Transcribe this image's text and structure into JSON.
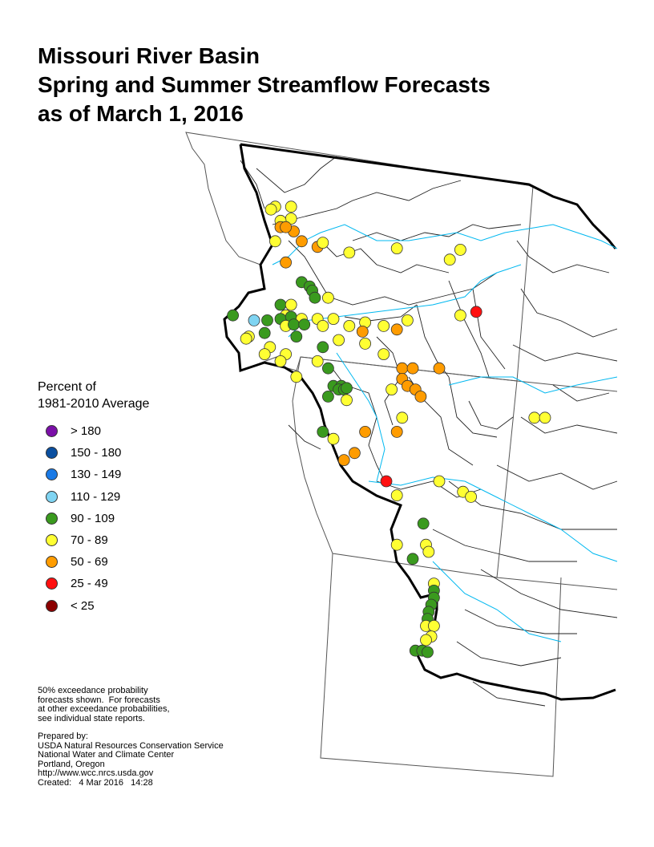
{
  "title": {
    "line1": "Missouri River Basin",
    "line2": "Spring and Summer Streamflow Forecasts",
    "line3": "as of March 1, 2016"
  },
  "legend": {
    "title_line1": "Percent of",
    "title_line2": "1981-2010 Average",
    "items": [
      {
        "label": "> 180",
        "color": "#7b0fa8"
      },
      {
        "label": "150 - 180",
        "color": "#0a4fa0"
      },
      {
        "label": "130 - 149",
        "color": "#1a7ae6"
      },
      {
        "label": "110 - 129",
        "color": "#7fd4f2"
      },
      {
        "label": "90 - 109",
        "color": "#3a9a1e"
      },
      {
        "label": "70 - 89",
        "color": "#ffff33"
      },
      {
        "label": "50 - 69",
        "color": "#ff9c00"
      },
      {
        "label": "25 - 49",
        "color": "#ff1010"
      },
      {
        "label": "< 25",
        "color": "#8b0000"
      }
    ]
  },
  "notes": {
    "exceedance": [
      "50% exceedance probability",
      "forecasts shown.  For forecasts",
      "at other exceedance probabilities,",
      "see individual state reports."
    ],
    "prepared": [
      "Prepared by:",
      "USDA Natural Resources Conservation Service",
      "National Water and Climate Center",
      "Portland, Oregon",
      "http://www.wcc.nrcs.usda.gov",
      "Created:   4 Mar 2016   14:28"
    ]
  },
  "map_points": [
    {
      "lon": -113.7,
      "lat": 48.99,
      "cat": "70 - 89"
    },
    {
      "lon": -113.78,
      "lat": 48.95,
      "cat": "70 - 89"
    },
    {
      "lon": -113.4,
      "lat": 48.99,
      "cat": "70 - 89"
    },
    {
      "lon": -113.4,
      "lat": 48.82,
      "cat": "70 - 89"
    },
    {
      "lon": -113.6,
      "lat": 48.79,
      "cat": "70 - 89"
    },
    {
      "lon": -113.35,
      "lat": 48.64,
      "cat": "50 - 69"
    },
    {
      "lon": -113.6,
      "lat": 48.7,
      "cat": "50 - 69"
    },
    {
      "lon": -113.5,
      "lat": 48.7,
      "cat": "50 - 69"
    },
    {
      "lon": -113.7,
      "lat": 48.5,
      "cat": "70 - 89"
    },
    {
      "lon": -113.2,
      "lat": 48.5,
      "cat": "50 - 69"
    },
    {
      "lon": -112.9,
      "lat": 48.42,
      "cat": "50 - 69"
    },
    {
      "lon": -112.8,
      "lat": 48.48,
      "cat": "70 - 89"
    },
    {
      "lon": -112.3,
      "lat": 48.34,
      "cat": "70 - 89"
    },
    {
      "lon": -111.4,
      "lat": 48.4,
      "cat": "70 - 89"
    },
    {
      "lon": -110.2,
      "lat": 48.38,
      "cat": "70 - 89"
    },
    {
      "lon": -110.4,
      "lat": 48.24,
      "cat": "70 - 89"
    },
    {
      "lon": -113.5,
      "lat": 48.2,
      "cat": "50 - 69"
    },
    {
      "lon": -113.2,
      "lat": 47.92,
      "cat": "90 - 109"
    },
    {
      "lon": -113.05,
      "lat": 47.86,
      "cat": "90 - 109"
    },
    {
      "lon": -113.0,
      "lat": 47.8,
      "cat": "90 - 109"
    },
    {
      "lon": -112.95,
      "lat": 47.7,
      "cat": "90 - 109"
    },
    {
      "lon": -112.7,
      "lat": 47.7,
      "cat": "70 - 89"
    },
    {
      "lon": -113.6,
      "lat": 47.6,
      "cat": "90 - 109"
    },
    {
      "lon": -113.4,
      "lat": 47.6,
      "cat": "70 - 89"
    },
    {
      "lon": -113.5,
      "lat": 47.45,
      "cat": "70 - 89"
    },
    {
      "lon": -113.6,
      "lat": 47.4,
      "cat": "90 - 109"
    },
    {
      "lon": -113.4,
      "lat": 47.43,
      "cat": "90 - 109"
    },
    {
      "lon": -114.5,
      "lat": 47.45,
      "cat": "90 - 109"
    },
    {
      "lon": -114.1,
      "lat": 47.38,
      "cat": "110 - 129"
    },
    {
      "lon": -113.85,
      "lat": 47.38,
      "cat": "90 - 109"
    },
    {
      "lon": -113.2,
      "lat": 47.4,
      "cat": "70 - 89"
    },
    {
      "lon": -112.9,
      "lat": 47.4,
      "cat": "70 - 89"
    },
    {
      "lon": -112.6,
      "lat": 47.4,
      "cat": "70 - 89"
    },
    {
      "lon": -112.0,
      "lat": 47.35,
      "cat": "70 - 89"
    },
    {
      "lon": -111.2,
      "lat": 47.38,
      "cat": "70 - 89"
    },
    {
      "lon": -110.2,
      "lat": 47.45,
      "cat": "70 - 89"
    },
    {
      "lon": -109.9,
      "lat": 47.5,
      "cat": "25 - 49"
    },
    {
      "lon": -113.5,
      "lat": 47.3,
      "cat": "70 - 89"
    },
    {
      "lon": -113.35,
      "lat": 47.32,
      "cat": "90 - 109"
    },
    {
      "lon": -113.15,
      "lat": 47.32,
      "cat": "90 - 109"
    },
    {
      "lon": -112.8,
      "lat": 47.3,
      "cat": "70 - 89"
    },
    {
      "lon": -112.3,
      "lat": 47.3,
      "cat": "70 - 89"
    },
    {
      "lon": -112.05,
      "lat": 47.22,
      "cat": "50 - 69"
    },
    {
      "lon": -111.4,
      "lat": 47.25,
      "cat": "50 - 69"
    },
    {
      "lon": -111.65,
      "lat": 47.3,
      "cat": "70 - 89"
    },
    {
      "lon": -113.9,
      "lat": 47.2,
      "cat": "90 - 109"
    },
    {
      "lon": -114.2,
      "lat": 47.15,
      "cat": "70 - 89"
    },
    {
      "lon": -114.25,
      "lat": 47.12,
      "cat": "70 - 89"
    },
    {
      "lon": -113.8,
      "lat": 47.0,
      "cat": "70 - 89"
    },
    {
      "lon": -113.3,
      "lat": 47.15,
      "cat": "90 - 109"
    },
    {
      "lon": -112.8,
      "lat": 47.0,
      "cat": "90 - 109"
    },
    {
      "lon": -112.5,
      "lat": 47.1,
      "cat": "70 - 89"
    },
    {
      "lon": -112.0,
      "lat": 47.05,
      "cat": "70 - 89"
    },
    {
      "lon": -113.5,
      "lat": 46.9,
      "cat": "70 - 89"
    },
    {
      "lon": -113.6,
      "lat": 46.8,
      "cat": "70 - 89"
    },
    {
      "lon": -113.9,
      "lat": 46.9,
      "cat": "70 - 89"
    },
    {
      "lon": -112.9,
      "lat": 46.8,
      "cat": "70 - 89"
    },
    {
      "lon": -112.7,
      "lat": 46.7,
      "cat": "90 - 109"
    },
    {
      "lon": -111.65,
      "lat": 46.9,
      "cat": "70 - 89"
    },
    {
      "lon": -111.3,
      "lat": 46.7,
      "cat": "50 - 69"
    },
    {
      "lon": -111.1,
      "lat": 46.7,
      "cat": "50 - 69"
    },
    {
      "lon": -110.6,
      "lat": 46.7,
      "cat": "50 - 69"
    },
    {
      "lon": -113.3,
      "lat": 46.58,
      "cat": "70 - 89"
    },
    {
      "lon": -112.6,
      "lat": 46.45,
      "cat": "90 - 109"
    },
    {
      "lon": -112.45,
      "lat": 46.45,
      "cat": "90 - 109"
    },
    {
      "lon": -112.5,
      "lat": 46.4,
      "cat": "90 - 109"
    },
    {
      "lon": -112.4,
      "lat": 46.4,
      "cat": "90 - 109"
    },
    {
      "lon": -112.35,
      "lat": 46.42,
      "cat": "90 - 109"
    },
    {
      "lon": -112.7,
      "lat": 46.3,
      "cat": "90 - 109"
    },
    {
      "lon": -112.35,
      "lat": 46.25,
      "cat": "70 - 89"
    },
    {
      "lon": -111.3,
      "lat": 46.55,
      "cat": "50 - 69"
    },
    {
      "lon": -111.5,
      "lat": 46.4,
      "cat": "70 - 89"
    },
    {
      "lon": -111.2,
      "lat": 46.45,
      "cat": "50 - 69"
    },
    {
      "lon": -111.05,
      "lat": 46.4,
      "cat": "50 - 69"
    },
    {
      "lon": -110.95,
      "lat": 46.3,
      "cat": "50 - 69"
    },
    {
      "lon": -111.3,
      "lat": 46.0,
      "cat": "70 - 89"
    },
    {
      "lon": -112.8,
      "lat": 45.8,
      "cat": "90 - 109"
    },
    {
      "lon": -112.6,
      "lat": 45.7,
      "cat": "70 - 89"
    },
    {
      "lon": -112.0,
      "lat": 45.8,
      "cat": "50 - 69"
    },
    {
      "lon": -111.4,
      "lat": 45.8,
      "cat": "50 - 69"
    },
    {
      "lon": -112.2,
      "lat": 45.5,
      "cat": "50 - 69"
    },
    {
      "lon": -112.4,
      "lat": 45.4,
      "cat": "50 - 69"
    },
    {
      "lon": -108.8,
      "lat": 46.0,
      "cat": "70 - 89"
    },
    {
      "lon": -108.6,
      "lat": 46.0,
      "cat": "70 - 89"
    },
    {
      "lon": -111.6,
      "lat": 45.1,
      "cat": "25 - 49"
    },
    {
      "lon": -111.4,
      "lat": 44.9,
      "cat": "70 - 89"
    },
    {
      "lon": -110.6,
      "lat": 45.1,
      "cat": "70 - 89"
    },
    {
      "lon": -110.15,
      "lat": 44.95,
      "cat": "70 - 89"
    },
    {
      "lon": -110.0,
      "lat": 44.88,
      "cat": "70 - 89"
    },
    {
      "lon": -110.9,
      "lat": 44.5,
      "cat": "90 - 109"
    },
    {
      "lon": -111.4,
      "lat": 44.2,
      "cat": "70 - 89"
    },
    {
      "lon": -110.85,
      "lat": 44.2,
      "cat": "70 - 89"
    },
    {
      "lon": -110.8,
      "lat": 44.1,
      "cat": "70 - 89"
    },
    {
      "lon": -111.1,
      "lat": 44.0,
      "cat": "90 - 109"
    },
    {
      "lon": -110.7,
      "lat": 43.65,
      "cat": "70 - 89"
    },
    {
      "lon": -110.7,
      "lat": 43.55,
      "cat": "90 - 109"
    },
    {
      "lon": -110.7,
      "lat": 43.45,
      "cat": "90 - 109"
    },
    {
      "lon": -110.75,
      "lat": 43.35,
      "cat": "90 - 109"
    },
    {
      "lon": -110.8,
      "lat": 43.25,
      "cat": "90 - 109"
    },
    {
      "lon": -110.82,
      "lat": 43.15,
      "cat": "90 - 109"
    },
    {
      "lon": -110.85,
      "lat": 43.05,
      "cat": "70 - 89"
    },
    {
      "lon": -110.7,
      "lat": 43.05,
      "cat": "70 - 89"
    },
    {
      "lon": -110.75,
      "lat": 42.9,
      "cat": "70 - 89"
    },
    {
      "lon": -110.85,
      "lat": 42.85,
      "cat": "70 - 89"
    },
    {
      "lon": -111.05,
      "lat": 42.7,
      "cat": "90 - 109"
    },
    {
      "lon": -110.92,
      "lat": 42.7,
      "cat": "90 - 109"
    },
    {
      "lon": -110.82,
      "lat": 42.68,
      "cat": "90 - 109"
    }
  ]
}
